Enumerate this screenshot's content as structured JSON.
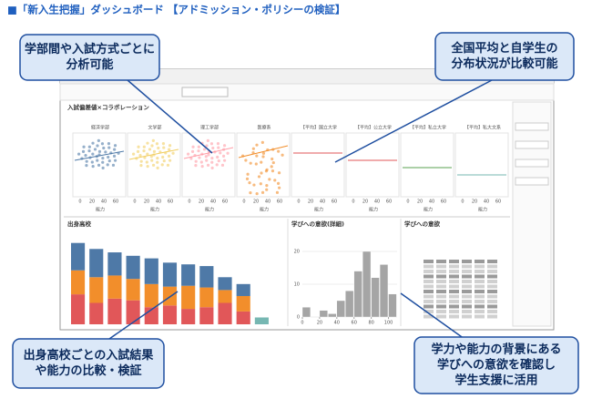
{
  "header": {
    "title": "■「新入生把握」ダッシュボード 【アドミッション・ポリシーの検証】"
  },
  "callouts": [
    {
      "lines": [
        "学部間や入試方式ごとに",
        "分析可能"
      ]
    },
    {
      "lines": [
        "全国平均と自学生の",
        "分布状況が比較可能"
      ]
    },
    {
      "lines": [
        "出身高校ごとの入試結果",
        "や能力の比較・検証"
      ]
    },
    {
      "lines": [
        "学力や能力の背景にある",
        "学びへの意欲を確認し",
        "学生支援に活用"
      ]
    }
  ],
  "dashboard": {
    "scatter_title": "入試偏差値×コラボレーション",
    "panes": [
      "経済学部",
      "文学部",
      "理工学部",
      "医療系",
      "【平均】国立大学",
      "【平均】公立大学",
      "【平均】私立大学",
      "【平均】私大文系"
    ],
    "pane_axis": "能力",
    "pane_ticks": [
      0,
      20,
      40,
      60
    ],
    "chart_data": [
      {
        "type": "bar",
        "title": "出身高校",
        "ylim": [
          0,
          100
        ],
        "series": [
          {
            "color": "#e15759",
            "values": [
              35,
              25,
              30,
              28,
              20,
              22,
              18,
              20,
              25,
              15,
              0
            ]
          },
          {
            "color": "#f28e2b",
            "values": [
              28,
              30,
              27,
              25,
              27,
              22,
              27,
              23,
              15,
              18,
              0
            ]
          },
          {
            "color": "#4e79a7",
            "values": [
              32,
              33,
              27,
              27,
              30,
              28,
              25,
              25,
              15,
              14,
              0
            ]
          },
          {
            "color": "#76b7b2",
            "values": [
              0,
              0,
              0,
              0,
              0,
              0,
              0,
              0,
              0,
              0,
              8
            ]
          }
        ]
      },
      {
        "type": "histogram",
        "title": "学びへの意欲(詳細)",
        "bins": [
          0,
          10,
          20,
          30,
          40,
          50,
          60,
          70,
          80,
          90,
          100,
          110
        ],
        "values": [
          3,
          0,
          2,
          1,
          5,
          8,
          14,
          20,
          12,
          16,
          7
        ],
        "color": "#a5a5a5",
        "xlim": [
          0,
          110
        ],
        "xticks": [
          0,
          20,
          40,
          60,
          80,
          100
        ],
        "ylim": [
          0,
          25
        ],
        "yticks": [
          0,
          10,
          20
        ]
      },
      {
        "type": "table",
        "title": "学びへの意欲"
      }
    ]
  }
}
